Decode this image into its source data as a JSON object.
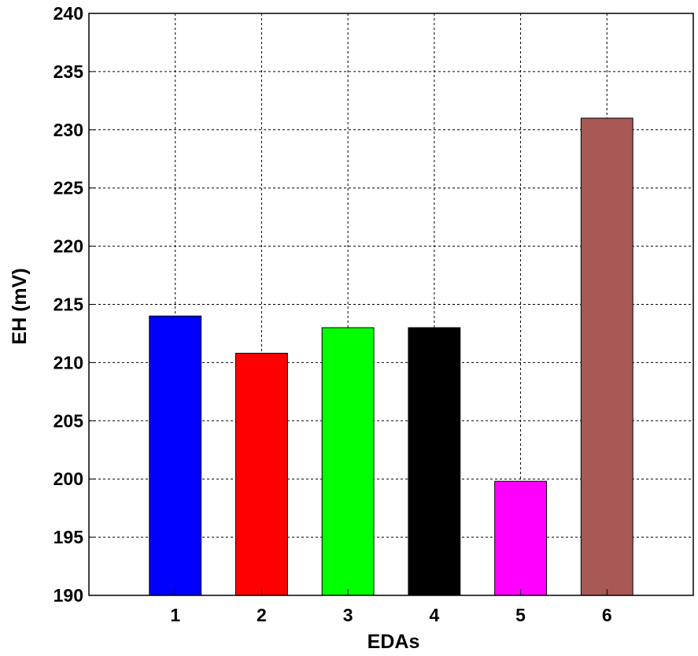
{
  "chart_data": {
    "type": "bar",
    "categories": [
      "1",
      "2",
      "3",
      "4",
      "5",
      "6"
    ],
    "values": [
      214,
      210.8,
      213,
      213,
      199.8,
      231
    ],
    "colors": [
      "#0000FF",
      "#FF0000",
      "#00FF00",
      "#000000",
      "#FF00FF",
      "#A85955"
    ],
    "title": "",
    "xlabel": "EDAs",
    "ylabel": "EH (mV)",
    "ylim": [
      190,
      240
    ],
    "yticks": [
      190,
      195,
      200,
      205,
      210,
      215,
      220,
      225,
      230,
      235,
      240
    ],
    "xlim": [
      0,
      7
    ],
    "grid": true
  }
}
